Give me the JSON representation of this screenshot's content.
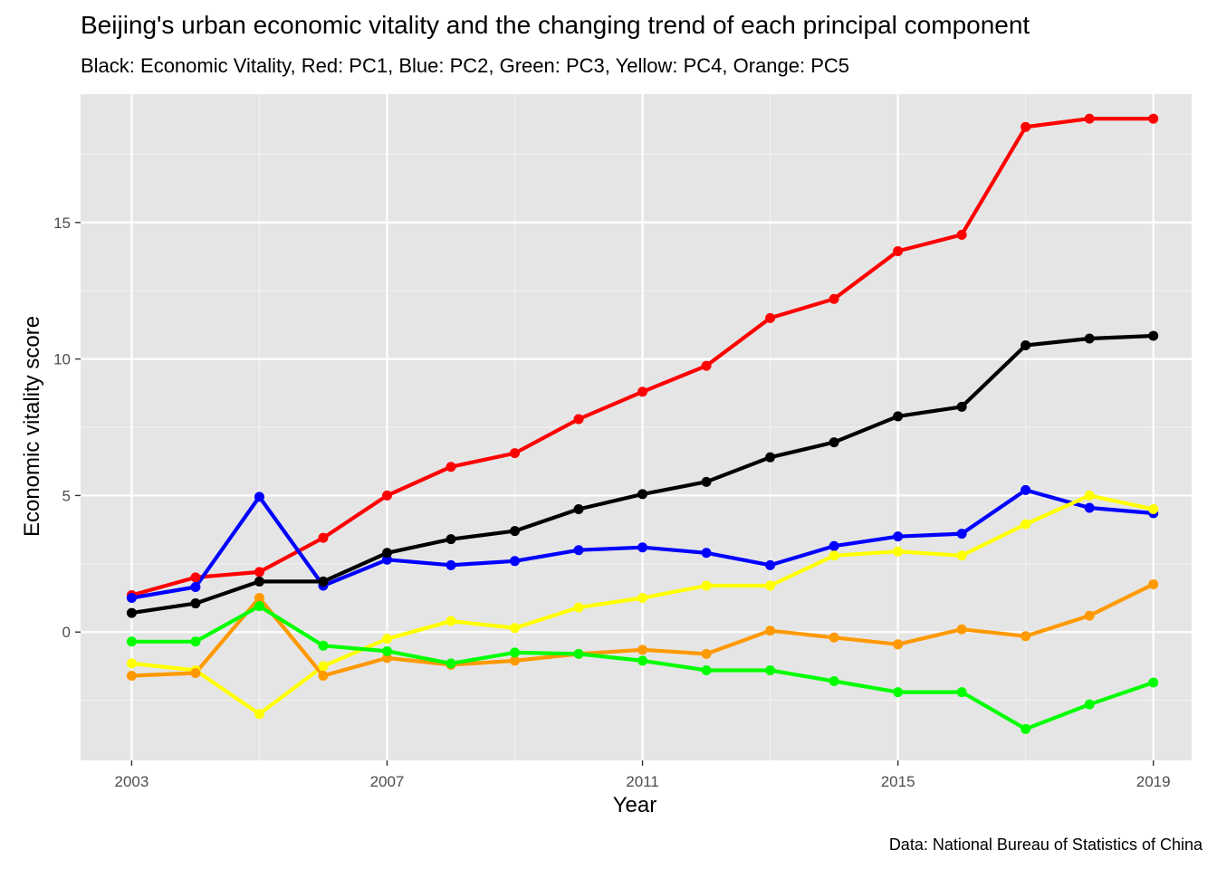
{
  "chart_data": {
    "type": "line",
    "title": "Beijing's urban economic vitality and the changing trend of each principal component",
    "subtitle": "Black: Economic Vitality, Red: PC1, Blue: PC2, Green: PC3, Yellow: PC4, Orange: PC5",
    "caption": "Data: National Bureau of Statistics of China",
    "xlabel": "Year",
    "ylabel": "Economic vitality score",
    "xlim": [
      2002.2,
      2019.6
    ],
    "ylim": [
      -4.7,
      19.7
    ],
    "x_ticks": [
      2003,
      2007,
      2011,
      2015,
      2019
    ],
    "y_ticks": [
      0,
      5,
      10,
      15
    ],
    "grid": true,
    "background": "#e5e5e5",
    "x": [
      2003,
      2004,
      2005,
      2006,
      2007,
      2008,
      2009,
      2010,
      2011,
      2012,
      2013,
      2014,
      2015,
      2016,
      2017,
      2018,
      2019
    ],
    "series": [
      {
        "color": "#ff0000",
        "values": [
          1.35,
          2.0,
          2.2,
          3.45,
          5.0,
          6.05,
          6.55,
          7.8,
          8.8,
          9.75,
          11.5,
          12.2,
          13.95,
          14.55,
          18.5,
          18.8,
          18.8
        ]
      },
      {
        "color": "#0000ff",
        "values": [
          1.25,
          1.65,
          4.95,
          1.7,
          2.65,
          2.45,
          2.6,
          3.0,
          3.1,
          2.9,
          2.45,
          3.15,
          3.5,
          3.6,
          5.2,
          4.55,
          4.35
        ]
      },
      {
        "color": "#ffff00",
        "values": [
          -1.15,
          -1.4,
          -3.0,
          -1.25,
          -0.25,
          0.4,
          0.15,
          0.9,
          1.25,
          1.7,
          1.7,
          2.8,
          2.95,
          2.8,
          3.95,
          5.0,
          4.5
        ]
      },
      {
        "color": "#ff9900",
        "values": [
          -1.6,
          -1.5,
          1.25,
          -1.6,
          -0.95,
          -1.2,
          -1.05,
          -0.8,
          -0.65,
          -0.8,
          0.05,
          -0.2,
          -0.45,
          0.1,
          -0.15,
          0.6,
          1.75
        ]
      },
      {
        "color": "#00ff00",
        "values": [
          -0.35,
          -0.35,
          0.95,
          -0.5,
          -0.7,
          -1.15,
          -0.75,
          -0.8,
          -1.05,
          -1.4,
          -1.4,
          -1.8,
          -2.2,
          -2.2,
          -3.55,
          -2.65,
          -1.85
        ]
      },
      {
        "color": "#000000",
        "values": [
          0.7,
          1.05,
          1.85,
          1.85,
          2.9,
          3.4,
          3.7,
          4.5,
          5.05,
          5.5,
          6.4,
          6.95,
          7.9,
          8.25,
          10.5,
          10.75,
          10.85
        ]
      }
    ]
  }
}
